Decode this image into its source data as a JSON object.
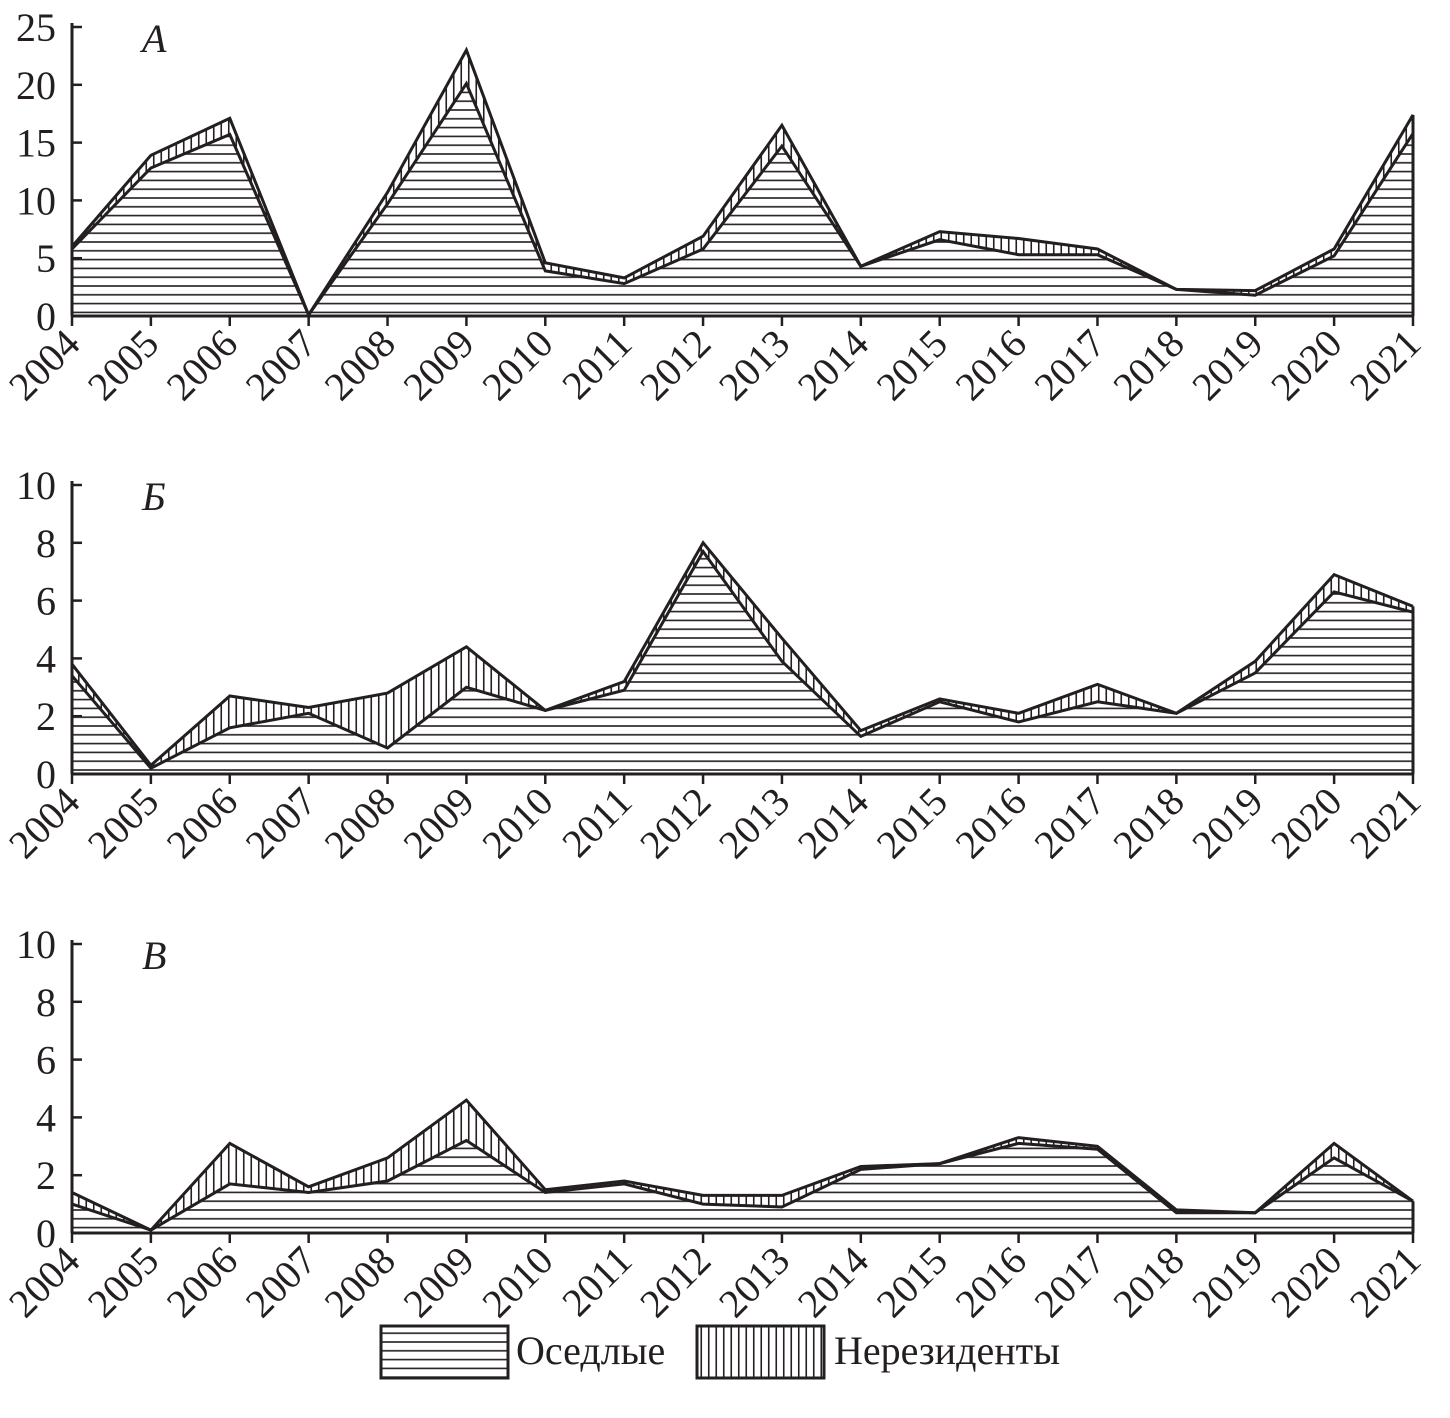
{
  "colors": {
    "ink": "#231f20",
    "background": "#ffffff"
  },
  "legend": {
    "resident_label": "Оседлые",
    "nonresident_label": "Нерезиденты"
  },
  "chart_data": [
    {
      "type": "area",
      "stacked": true,
      "panel_label": "А",
      "x": [
        2004,
        2005,
        2006,
        2007,
        2008,
        2009,
        2010,
        2011,
        2012,
        2013,
        2014,
        2015,
        2016,
        2017,
        2018,
        2019,
        2020,
        2021
      ],
      "ylim": [
        0,
        25
      ],
      "yticks": [
        0,
        5,
        10,
        15,
        20,
        25
      ],
      "series": [
        {
          "name": "Оседлые",
          "pattern": "horizontal-lines",
          "values": [
            5.8,
            12.8,
            15.7,
            0.1,
            9.7,
            20.1,
            3.9,
            2.8,
            5.8,
            14.7,
            4.3,
            6.6,
            5.3,
            5.3,
            2.3,
            1.8,
            5.2,
            15.8
          ]
        },
        {
          "name": "Нерезиденты",
          "pattern": "vertical-lines",
          "values": [
            0.2,
            1.1,
            1.4,
            0.0,
            1.0,
            2.9,
            0.7,
            0.5,
            1.1,
            1.8,
            0.0,
            0.7,
            1.4,
            0.5,
            0.0,
            0.4,
            0.6,
            1.6
          ]
        }
      ]
    },
    {
      "type": "area",
      "stacked": true,
      "panel_label": "Б",
      "x": [
        2004,
        2005,
        2006,
        2007,
        2008,
        2009,
        2010,
        2011,
        2012,
        2013,
        2014,
        2015,
        2016,
        2017,
        2018,
        2019,
        2020,
        2021
      ],
      "ylim": [
        0,
        10
      ],
      "yticks": [
        0,
        2,
        4,
        6,
        8,
        10
      ],
      "series": [
        {
          "name": "Оседлые",
          "pattern": "horizontal-lines",
          "values": [
            3.4,
            0.2,
            1.6,
            2.1,
            0.9,
            3.0,
            2.2,
            2.9,
            7.7,
            3.9,
            1.3,
            2.5,
            1.8,
            2.5,
            2.1,
            3.5,
            6.3,
            5.6
          ]
        },
        {
          "name": "Нерезиденты",
          "pattern": "vertical-lines",
          "values": [
            0.4,
            0.1,
            1.1,
            0.2,
            1.9,
            1.4,
            0.0,
            0.3,
            0.3,
            0.8,
            0.2,
            0.1,
            0.3,
            0.6,
            0.0,
            0.4,
            0.6,
            0.2
          ]
        }
      ]
    },
    {
      "type": "area",
      "stacked": true,
      "panel_label": "В",
      "x": [
        2004,
        2005,
        2006,
        2007,
        2008,
        2009,
        2010,
        2011,
        2012,
        2013,
        2014,
        2015,
        2016,
        2017,
        2018,
        2019,
        2020,
        2021
      ],
      "ylim": [
        0,
        10
      ],
      "yticks": [
        0,
        2,
        4,
        6,
        8,
        10
      ],
      "series": [
        {
          "name": "Оседлые",
          "pattern": "horizontal-lines",
          "values": [
            1.0,
            0.1,
            1.7,
            1.4,
            1.8,
            3.2,
            1.4,
            1.7,
            1.0,
            0.9,
            2.2,
            2.4,
            3.1,
            2.9,
            0.7,
            0.7,
            2.6,
            1.1
          ]
        },
        {
          "name": "Нерезиденты",
          "pattern": "vertical-lines",
          "values": [
            0.4,
            0.0,
            1.4,
            0.2,
            0.8,
            1.4,
            0.1,
            0.1,
            0.3,
            0.4,
            0.1,
            0.0,
            0.2,
            0.1,
            0.1,
            0.0,
            0.5,
            0.0
          ]
        }
      ]
    }
  ]
}
